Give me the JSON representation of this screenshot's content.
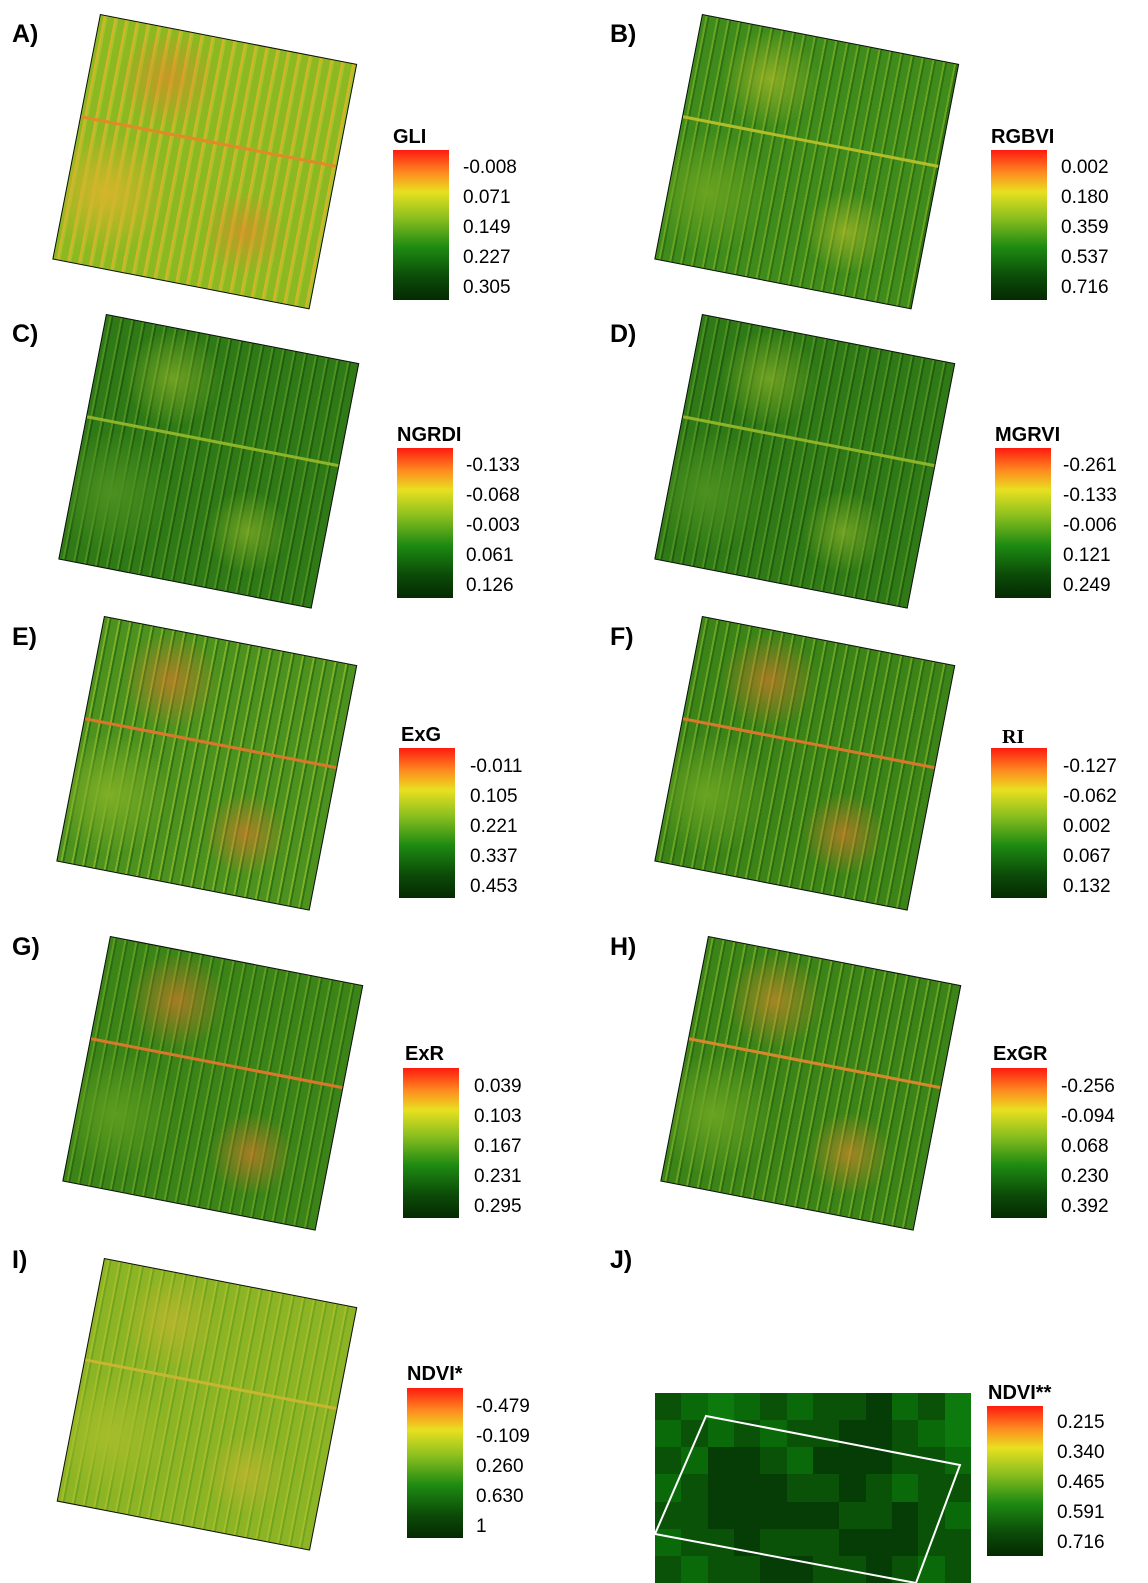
{
  "panels": [
    {
      "letter": "A)",
      "title": "GLI",
      "ticks": [
        "-0.008",
        "0.071",
        "0.149",
        "0.227",
        "0.305"
      ],
      "colors": [
        "#8cb821",
        "#d4b52a",
        "#e08a28",
        "#a8c22a"
      ]
    },
    {
      "letter": "B)",
      "title": "RGBVI",
      "ticks": [
        "0.002",
        "0.180",
        "0.359",
        "0.537",
        "0.716"
      ],
      "colors": [
        "#3f8c1c",
        "#6aa320",
        "#b3bd2a",
        "#2c7212"
      ]
    },
    {
      "letter": "C)",
      "title": "NGRDI",
      "ticks": [
        "-0.133",
        "-0.068",
        "-0.003",
        "0.061",
        "0.126"
      ],
      "colors": [
        "#2f7a16",
        "#4c9120",
        "#8fb42a",
        "#1f5e0e"
      ]
    },
    {
      "letter": "D)",
      "title": "MGRVI",
      "ticks": [
        "-0.261",
        "-0.133",
        "-0.006",
        "0.121",
        "0.249"
      ],
      "colors": [
        "#2f7a16",
        "#4c9120",
        "#8fb42a",
        "#1f5e0e"
      ]
    },
    {
      "letter": "E)",
      "title": "ExG",
      "ticks": [
        "-0.011",
        "0.105",
        "0.221",
        "0.337",
        "0.453"
      ],
      "colors": [
        "#4d921e",
        "#7faf26",
        "#d9782a",
        "#2f7414"
      ]
    },
    {
      "letter": "F)",
      "title": "RI",
      "ticks": [
        "-0.127",
        "-0.062",
        "0.002",
        "0.067",
        "0.132"
      ],
      "colors": [
        "#3c8418",
        "#6aa422",
        "#d8792a",
        "#2a6c12"
      ]
    },
    {
      "letter": "G)",
      "title": "ExR",
      "ticks": [
        "0.039",
        "0.103",
        "0.167",
        "0.231",
        "0.295"
      ],
      "colors": [
        "#3c8418",
        "#5d9c1f",
        "#d8792a",
        "#2a6c12"
      ]
    },
    {
      "letter": "H)",
      "title": "ExGR",
      "ticks": [
        "-0.256",
        "-0.094",
        "0.068",
        "0.230",
        "0.392"
      ],
      "colors": [
        "#3c8418",
        "#6aa422",
        "#d8882a",
        "#2a6c12"
      ]
    },
    {
      "letter": "I)",
      "title": "NDVI*",
      "ticks": [
        "-0.479",
        "-0.109",
        "0.260",
        "0.630",
        "1"
      ],
      "colors": [
        "#8cb424",
        "#a6bd2a",
        "#c7b630",
        "#6fa51f"
      ]
    },
    {
      "letter": "J)",
      "title": "NDVI**",
      "ticks": [
        "0.215",
        "0.340",
        "0.465",
        "0.591",
        "0.716"
      ],
      "colors": [
        "#0a6a0a",
        "#0a5208",
        "#0c7a0c",
        "#063c05"
      ]
    }
  ]
}
